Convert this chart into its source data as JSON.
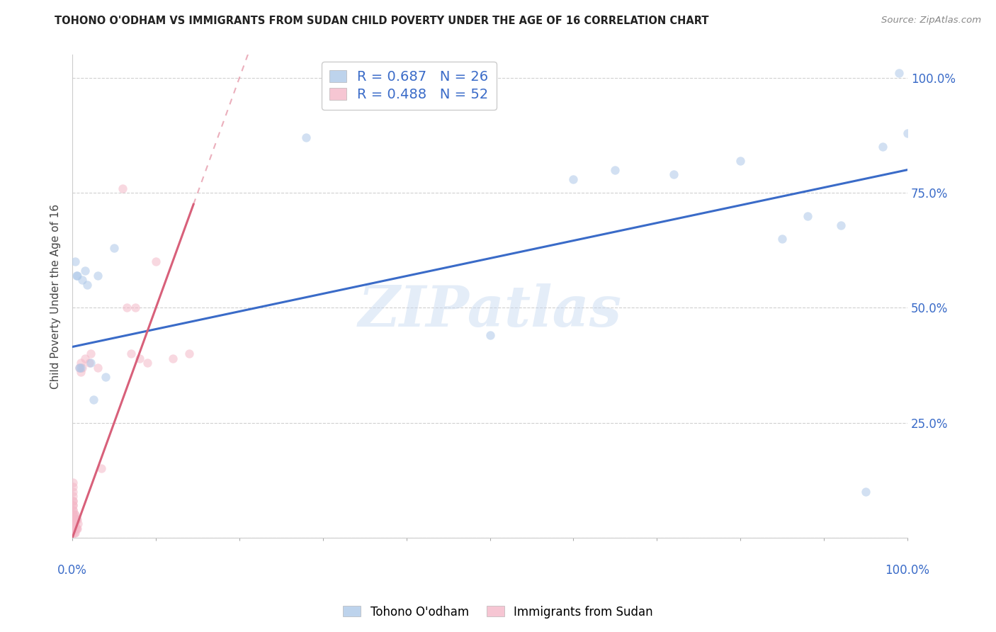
{
  "title": "TOHONO O'ODHAM VS IMMIGRANTS FROM SUDAN CHILD POVERTY UNDER THE AGE OF 16 CORRELATION CHART",
  "source": "Source: ZipAtlas.com",
  "ylabel": "Child Poverty Under the Age of 16",
  "watermark": "ZIPatlas",
  "legend1_label": "R = 0.687   N = 26",
  "legend2_label": "R = 0.488   N = 52",
  "blue_color": "#adc8e8",
  "pink_color": "#f4b8c8",
  "trend_blue": "#3a6bc8",
  "trend_pink": "#d8607a",
  "blue_x": [
    0.003,
    0.005,
    0.006,
    0.008,
    0.01,
    0.012,
    0.015,
    0.018,
    0.022,
    0.025,
    0.03,
    0.04,
    0.05,
    0.28,
    0.5,
    0.6,
    0.65,
    0.72,
    0.8,
    0.85,
    0.88,
    0.92,
    0.95,
    0.97,
    0.99,
    1.0
  ],
  "blue_y": [
    0.6,
    0.57,
    0.57,
    0.37,
    0.37,
    0.56,
    0.58,
    0.55,
    0.38,
    0.3,
    0.57,
    0.35,
    0.63,
    0.87,
    0.44,
    0.78,
    0.8,
    0.79,
    0.82,
    0.65,
    0.7,
    0.68,
    0.1,
    0.85,
    1.01,
    0.88
  ],
  "pink_x": [
    0.001,
    0.001,
    0.001,
    0.001,
    0.001,
    0.001,
    0.001,
    0.001,
    0.001,
    0.001,
    0.001,
    0.001,
    0.001,
    0.001,
    0.001,
    0.001,
    0.001,
    0.001,
    0.001,
    0.002,
    0.002,
    0.002,
    0.002,
    0.002,
    0.003,
    0.003,
    0.003,
    0.004,
    0.004,
    0.005,
    0.005,
    0.006,
    0.006,
    0.007,
    0.008,
    0.01,
    0.01,
    0.012,
    0.015,
    0.02,
    0.022,
    0.03,
    0.035,
    0.06,
    0.065,
    0.07,
    0.075,
    0.08,
    0.09,
    0.1,
    0.12,
    0.14
  ],
  "pink_y": [
    0.01,
    0.02,
    0.02,
    0.03,
    0.03,
    0.04,
    0.04,
    0.05,
    0.05,
    0.06,
    0.06,
    0.07,
    0.07,
    0.08,
    0.08,
    0.09,
    0.1,
    0.11,
    0.12,
    0.01,
    0.02,
    0.03,
    0.04,
    0.05,
    0.01,
    0.03,
    0.05,
    0.02,
    0.04,
    0.02,
    0.04,
    0.02,
    0.04,
    0.03,
    0.37,
    0.36,
    0.38,
    0.37,
    0.39,
    0.38,
    0.4,
    0.37,
    0.15,
    0.76,
    0.5,
    0.4,
    0.5,
    0.39,
    0.38,
    0.6,
    0.39,
    0.4
  ],
  "xlim": [
    0.0,
    1.0
  ],
  "ylim": [
    0.0,
    1.05
  ],
  "yticks": [
    0.0,
    0.25,
    0.5,
    0.75,
    1.0
  ],
  "ytick_labels": [
    "",
    "25.0%",
    "50.0%",
    "75.0%",
    "100.0%"
  ],
  "background_color": "#ffffff",
  "grid_color": "#d0d0d0",
  "title_color": "#222222",
  "axis_label_color": "#3a6bc8",
  "marker_size": 80,
  "marker_alpha": 0.55,
  "blue_trend_intercept": 0.415,
  "blue_trend_slope": 0.385,
  "pink_trend_intercept": 0.0,
  "pink_trend_slope": 5.0
}
